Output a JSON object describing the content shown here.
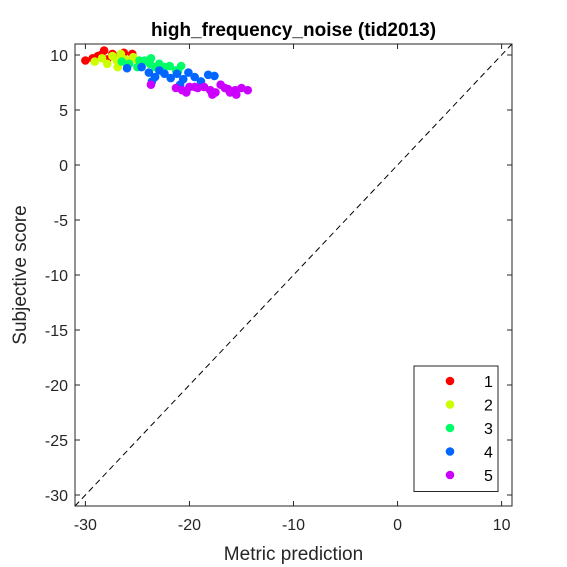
{
  "chart_data": {
    "type": "scatter",
    "title": "high_frequency_noise (tid2013)",
    "xlabel": "Metric prediction",
    "ylabel": "Subjective score",
    "xlim": [
      -31,
      11
    ],
    "ylim": [
      -31,
      11
    ],
    "xticks": [
      -30,
      -20,
      -10,
      0,
      10
    ],
    "yticks": [
      10,
      5,
      0,
      -5,
      -10,
      -15,
      -20,
      -25,
      -30
    ],
    "xtick_labels": [
      "-30",
      "-20",
      "-10",
      "0",
      "10"
    ],
    "ytick_labels": [
      "10",
      "5",
      "0",
      "-5",
      "-10",
      "-15",
      "-20",
      "-25",
      "-30"
    ],
    "grid": false,
    "reference_line": "dashed identity y = x",
    "legend": {
      "placement": "bottom-right",
      "entries": [
        "1",
        "2",
        "3",
        "4",
        "5"
      ]
    },
    "series": [
      {
        "name": "1",
        "color": "#ff0000",
        "x": [
          -30.0,
          -29.3,
          -28.5,
          -28.2,
          -27.9,
          -27.4,
          -27.0,
          -26.7,
          -26.3,
          -25.9,
          -25.5,
          -28.8
        ],
        "y": [
          9.5,
          9.7,
          10.0,
          10.4,
          9.6,
          10.1,
          9.8,
          9.5,
          10.2,
          9.4,
          10.1,
          9.9
        ]
      },
      {
        "name": "2",
        "color": "#ccff00",
        "x": [
          -29.1,
          -28.4,
          -27.9,
          -27.4,
          -27.0,
          -26.6,
          -26.2,
          -25.8,
          -25.4,
          -25.0,
          -24.6,
          -26.9
        ],
        "y": [
          9.4,
          9.7,
          9.2,
          9.9,
          9.5,
          10.1,
          9.6,
          9.3,
          9.8,
          9.5,
          9.2,
          8.9
        ]
      },
      {
        "name": "3",
        "color": "#00ff66",
        "x": [
          -26.5,
          -25.8,
          -25.0,
          -24.3,
          -23.7,
          -23.3,
          -22.9,
          -22.4,
          -21.9,
          -21.3,
          -20.8,
          -23.8,
          -24.8,
          -22.6,
          -21.1
        ],
        "y": [
          9.4,
          9.2,
          8.9,
          9.5,
          9.7,
          8.9,
          9.2,
          8.9,
          9.0,
          8.6,
          9.0,
          9.2,
          9.5,
          8.8,
          8.5
        ]
      },
      {
        "name": "4",
        "color": "#0066ff",
        "x": [
          -26.0,
          -24.6,
          -23.9,
          -23.3,
          -22.9,
          -22.4,
          -21.8,
          -21.2,
          -20.6,
          -20.1,
          -19.5,
          -18.9,
          -18.2,
          -17.6,
          -23.6,
          -20.9
        ],
        "y": [
          8.8,
          8.9,
          8.4,
          8.0,
          8.6,
          8.3,
          7.9,
          8.3,
          7.8,
          8.4,
          8.0,
          7.6,
          8.2,
          8.1,
          7.6,
          7.3
        ]
      },
      {
        "name": "5",
        "color": "#cc00ff",
        "x": [
          -23.7,
          -21.3,
          -20.7,
          -20.0,
          -19.2,
          -18.6,
          -18.0,
          -17.5,
          -17.0,
          -16.6,
          -16.1,
          -15.6,
          -15.0,
          -14.4,
          -17.8,
          -16.3,
          -15.5,
          -19.5,
          -20.3
        ],
        "y": [
          7.3,
          7.0,
          6.8,
          7.1,
          7.0,
          7.1,
          6.8,
          6.6,
          7.3,
          7.0,
          6.6,
          6.8,
          7.0,
          6.8,
          6.4,
          6.9,
          6.4,
          7.1,
          6.6
        ]
      }
    ]
  }
}
